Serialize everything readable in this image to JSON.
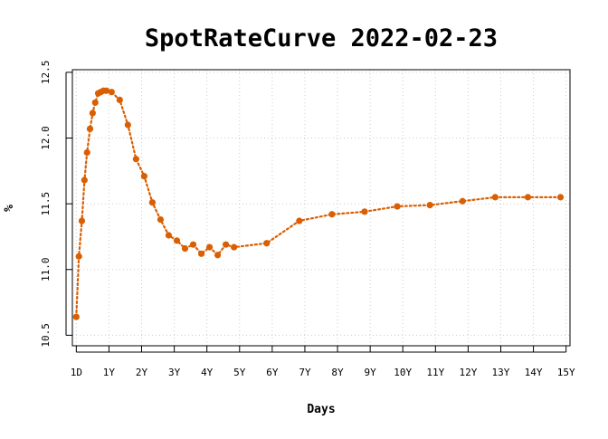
{
  "chart_data": {
    "type": "line",
    "title": "SpotRateCurve 2022-02-23",
    "xlabel": "Days",
    "ylabel": "%",
    "xlim": [
      -0.12,
      15.12
    ],
    "ylim": [
      10.42,
      12.52
    ],
    "x_ticks": [
      {
        "value": 0,
        "label": "1D"
      },
      {
        "value": 1,
        "label": "1Y"
      },
      {
        "value": 2,
        "label": "2Y"
      },
      {
        "value": 3,
        "label": "3Y"
      },
      {
        "value": 4,
        "label": "4Y"
      },
      {
        "value": 5,
        "label": "5Y"
      },
      {
        "value": 6,
        "label": "6Y"
      },
      {
        "value": 7,
        "label": "7Y"
      },
      {
        "value": 8,
        "label": "8Y"
      },
      {
        "value": 9,
        "label": "9Y"
      },
      {
        "value": 10,
        "label": "10Y"
      },
      {
        "value": 11,
        "label": "11Y"
      },
      {
        "value": 12,
        "label": "12Y"
      },
      {
        "value": 13,
        "label": "13Y"
      },
      {
        "value": 14,
        "label": "14Y"
      },
      {
        "value": 15,
        "label": "15Y"
      }
    ],
    "y_ticks": [
      {
        "value": 10.5,
        "label": "10.5"
      },
      {
        "value": 11.0,
        "label": "11.0"
      },
      {
        "value": 11.5,
        "label": "11.5"
      },
      {
        "value": 12.0,
        "label": "12.0"
      },
      {
        "value": 12.5,
        "label": "12.5"
      }
    ],
    "grid": true,
    "series": [
      {
        "color": "#d95f02",
        "points": [
          {
            "x": 0.0,
            "y": 10.64
          },
          {
            "x": 0.08,
            "y": 11.1
          },
          {
            "x": 0.17,
            "y": 11.37
          },
          {
            "x": 0.25,
            "y": 11.68
          },
          {
            "x": 0.33,
            "y": 11.89
          },
          {
            "x": 0.42,
            "y": 12.07
          },
          {
            "x": 0.5,
            "y": 12.19
          },
          {
            "x": 0.58,
            "y": 12.27
          },
          {
            "x": 0.67,
            "y": 12.34
          },
          {
            "x": 0.75,
            "y": 12.35
          },
          {
            "x": 0.83,
            "y": 12.36
          },
          {
            "x": 0.92,
            "y": 12.36
          },
          {
            "x": 1.08,
            "y": 12.35
          },
          {
            "x": 1.33,
            "y": 12.29
          },
          {
            "x": 1.58,
            "y": 12.1
          },
          {
            "x": 1.83,
            "y": 11.84
          },
          {
            "x": 2.08,
            "y": 11.71
          },
          {
            "x": 2.33,
            "y": 11.51
          },
          {
            "x": 2.58,
            "y": 11.38
          },
          {
            "x": 2.83,
            "y": 11.26
          },
          {
            "x": 3.08,
            "y": 11.22
          },
          {
            "x": 3.33,
            "y": 11.16
          },
          {
            "x": 3.58,
            "y": 11.19
          },
          {
            "x": 3.83,
            "y": 11.12
          },
          {
            "x": 4.08,
            "y": 11.17
          },
          {
            "x": 4.33,
            "y": 11.11
          },
          {
            "x": 4.58,
            "y": 11.19
          },
          {
            "x": 4.83,
            "y": 11.17
          },
          {
            "x": 5.83,
            "y": 11.2
          },
          {
            "x": 6.83,
            "y": 11.37
          },
          {
            "x": 7.83,
            "y": 11.42
          },
          {
            "x": 8.83,
            "y": 11.44
          },
          {
            "x": 9.83,
            "y": 11.48
          },
          {
            "x": 10.83,
            "y": 11.49
          },
          {
            "x": 11.83,
            "y": 11.52
          },
          {
            "x": 12.83,
            "y": 11.55
          },
          {
            "x": 13.83,
            "y": 11.55
          },
          {
            "x": 14.83,
            "y": 11.55
          }
        ]
      }
    ]
  }
}
